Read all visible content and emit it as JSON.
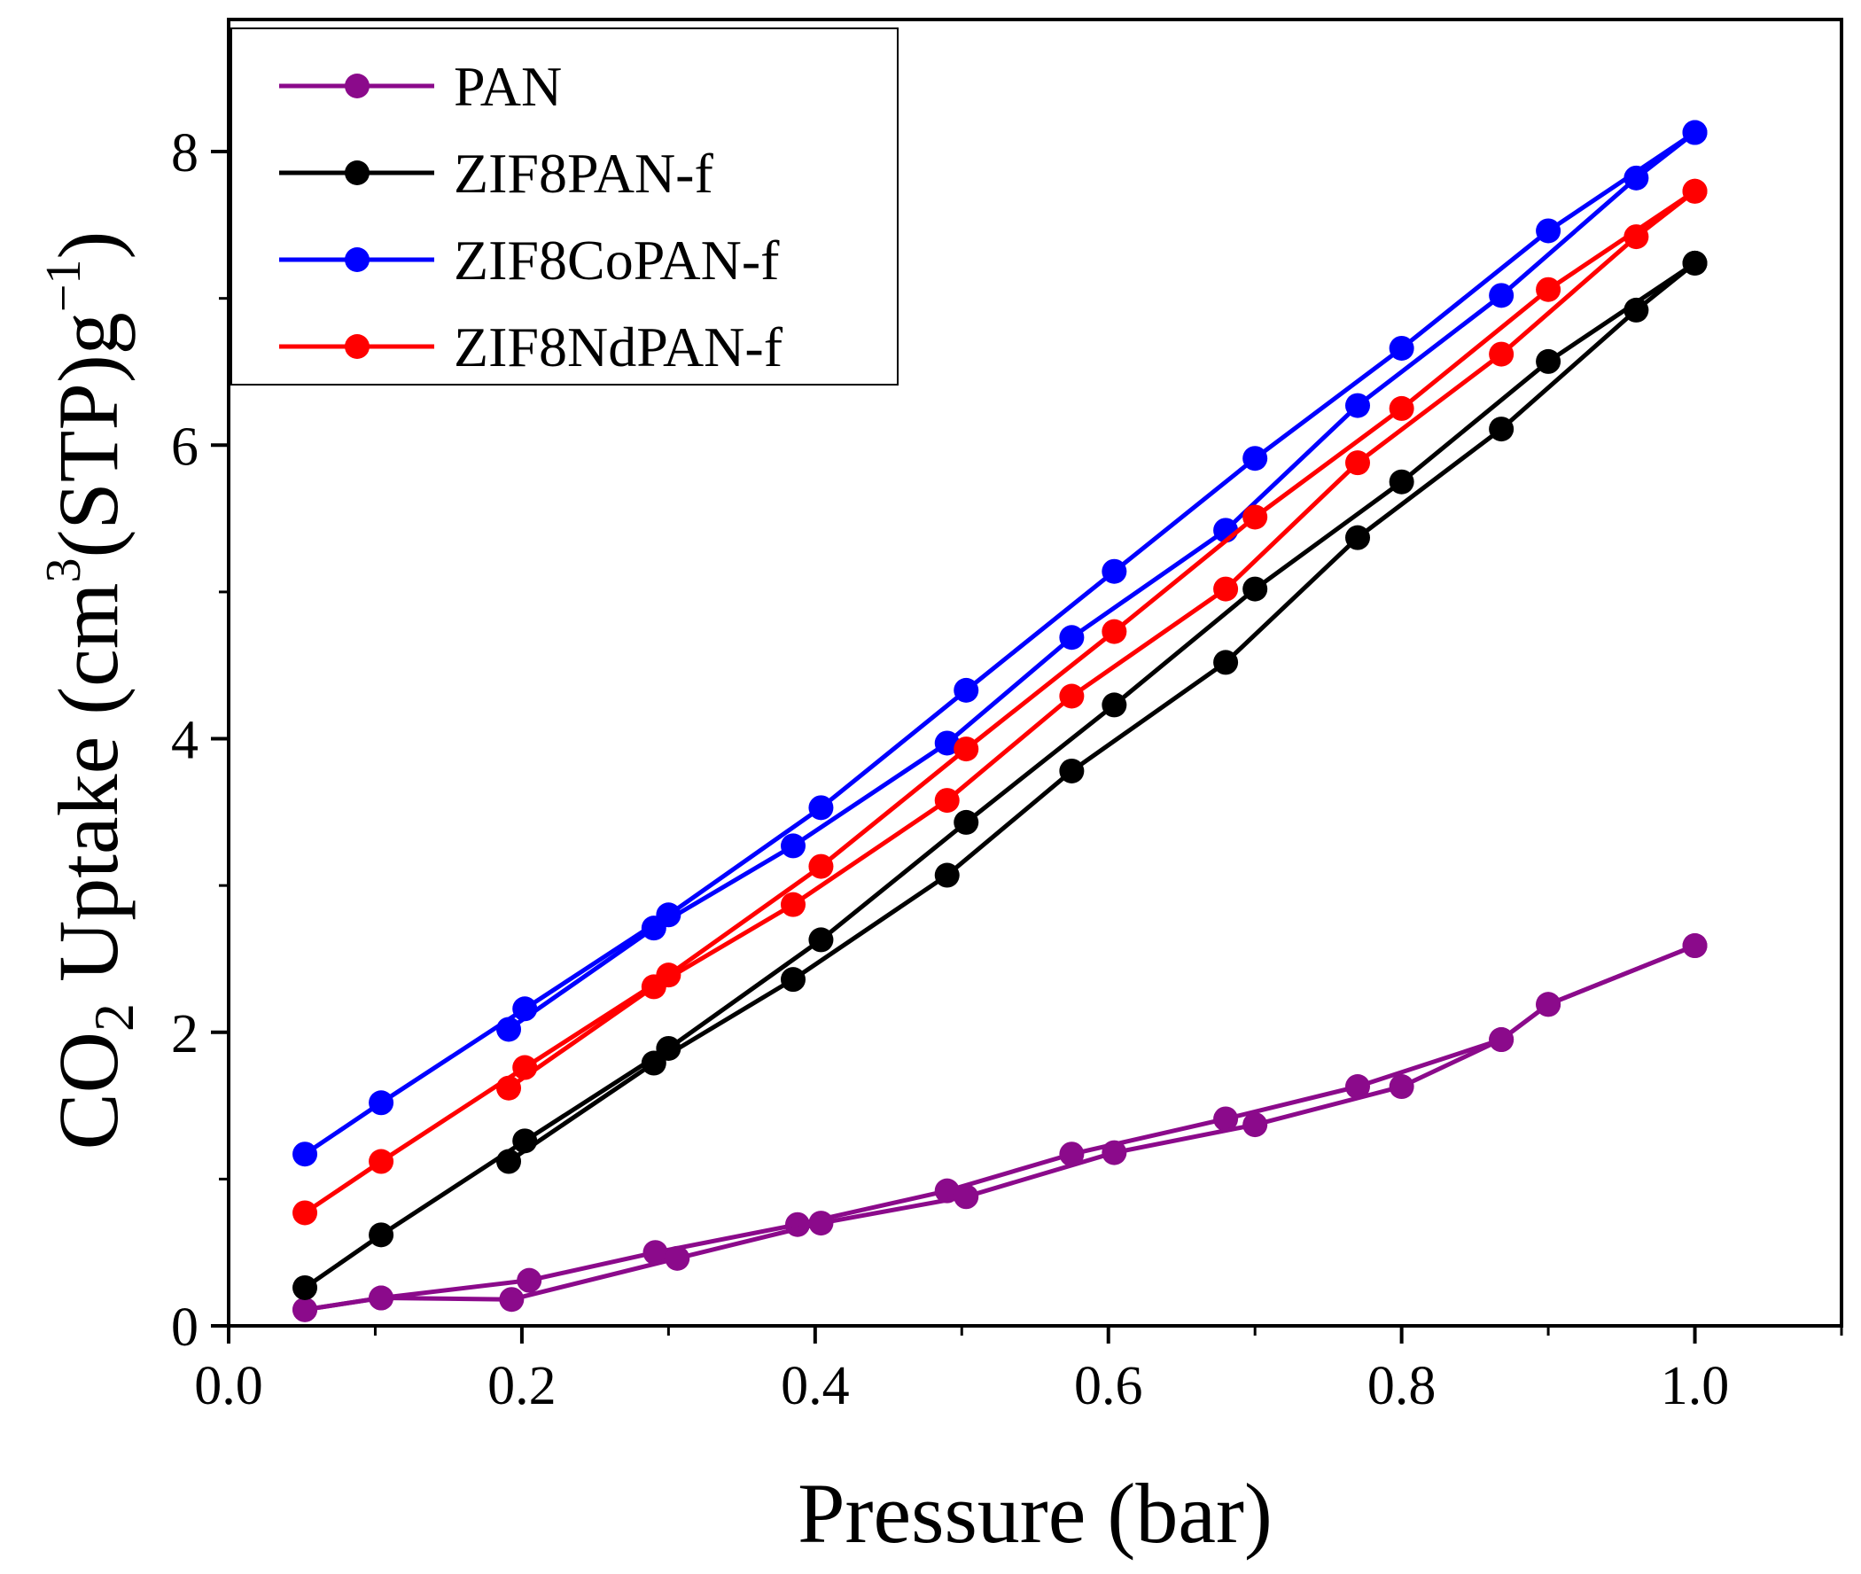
{
  "chart_data": {
    "type": "line",
    "xlabel": "Pressure (bar)",
    "ylabel": {
      "prefix": "CO",
      "sub": "2",
      "mid": " Uptake (cm",
      "sup1": "3",
      "mid2": "(STP)g",
      "sup2": "−1",
      "suffix": ")"
    },
    "xlim": [
      0.0,
      1.1
    ],
    "ylim": [
      0,
      8.9
    ],
    "xticks": [
      0.0,
      0.2,
      0.4,
      0.6,
      0.8,
      1.0
    ],
    "xtick_labels": [
      "0.0",
      "0.2",
      "0.4",
      "0.6",
      "0.8",
      "1.0"
    ],
    "yticks": [
      0,
      2,
      4,
      6,
      8
    ],
    "ytick_labels": [
      "0",
      "2",
      "4",
      "6",
      "8"
    ],
    "legend_position": "top-left",
    "series": [
      {
        "name": "PAN",
        "color": "#8b0a8b",
        "adsorption": {
          "x": [
            0.052,
            0.104,
            0.205,
            0.291,
            0.388,
            0.49,
            0.575,
            0.68,
            0.77,
            0.868,
            0.9,
            1.0
          ],
          "y": [
            0.11,
            0.19,
            0.31,
            0.5,
            0.69,
            0.92,
            1.17,
            1.41,
            1.63,
            1.95,
            2.19,
            2.59
          ]
        },
        "desorption": {
          "x": [
            1.0,
            0.9,
            0.868,
            0.8,
            0.7,
            0.604,
            0.503,
            0.404,
            0.306,
            0.193,
            0.104,
            0.052
          ],
          "y": [
            2.59,
            2.19,
            1.95,
            1.63,
            1.37,
            1.18,
            0.88,
            0.7,
            0.46,
            0.18,
            0.19,
            0.11
          ]
        }
      },
      {
        "name": "ZIF8PAN-f",
        "color": "#000000",
        "adsorption": {
          "x": [
            0.052,
            0.104,
            0.202,
            0.3,
            0.404,
            0.503,
            0.604,
            0.7,
            0.8,
            0.9,
            1.0
          ],
          "y": [
            0.26,
            0.62,
            1.26,
            1.89,
            2.63,
            3.43,
            4.23,
            5.02,
            5.75,
            6.57,
            7.24
          ]
        },
        "desorption": {
          "x": [
            1.0,
            0.96,
            0.868,
            0.77,
            0.68,
            0.575,
            0.49,
            0.385,
            0.29,
            0.191
          ],
          "y": [
            7.24,
            6.92,
            6.11,
            5.37,
            4.52,
            3.78,
            3.07,
            2.36,
            1.79,
            1.12
          ]
        }
      },
      {
        "name": "ZIF8CoPAN-f",
        "color": "#0000ff",
        "adsorption": {
          "x": [
            0.052,
            0.104,
            0.202,
            0.3,
            0.404,
            0.503,
            0.604,
            0.7,
            0.8,
            0.9,
            1.0
          ],
          "y": [
            1.17,
            1.52,
            2.16,
            2.8,
            3.53,
            4.33,
            5.14,
            5.91,
            6.66,
            7.46,
            8.13
          ]
        },
        "desorption": {
          "x": [
            1.0,
            0.96,
            0.868,
            0.77,
            0.68,
            0.575,
            0.49,
            0.385,
            0.29,
            0.191
          ],
          "y": [
            8.13,
            7.82,
            7.02,
            6.27,
            5.42,
            4.69,
            3.97,
            3.27,
            2.71,
            2.02
          ]
        }
      },
      {
        "name": "ZIF8NdPAN-f",
        "color": "#ff0000",
        "adsorption": {
          "x": [
            0.052,
            0.104,
            0.202,
            0.3,
            0.404,
            0.503,
            0.604,
            0.7,
            0.8,
            0.9,
            1.0
          ],
          "y": [
            0.77,
            1.12,
            1.76,
            2.39,
            3.13,
            3.93,
            4.73,
            5.51,
            6.25,
            7.06,
            7.73
          ]
        },
        "desorption": {
          "x": [
            1.0,
            0.96,
            0.868,
            0.77,
            0.68,
            0.575,
            0.49,
            0.385,
            0.29,
            0.191
          ],
          "y": [
            7.73,
            7.42,
            6.62,
            5.88,
            5.02,
            4.29,
            3.58,
            2.87,
            2.31,
            1.62
          ]
        }
      }
    ]
  }
}
